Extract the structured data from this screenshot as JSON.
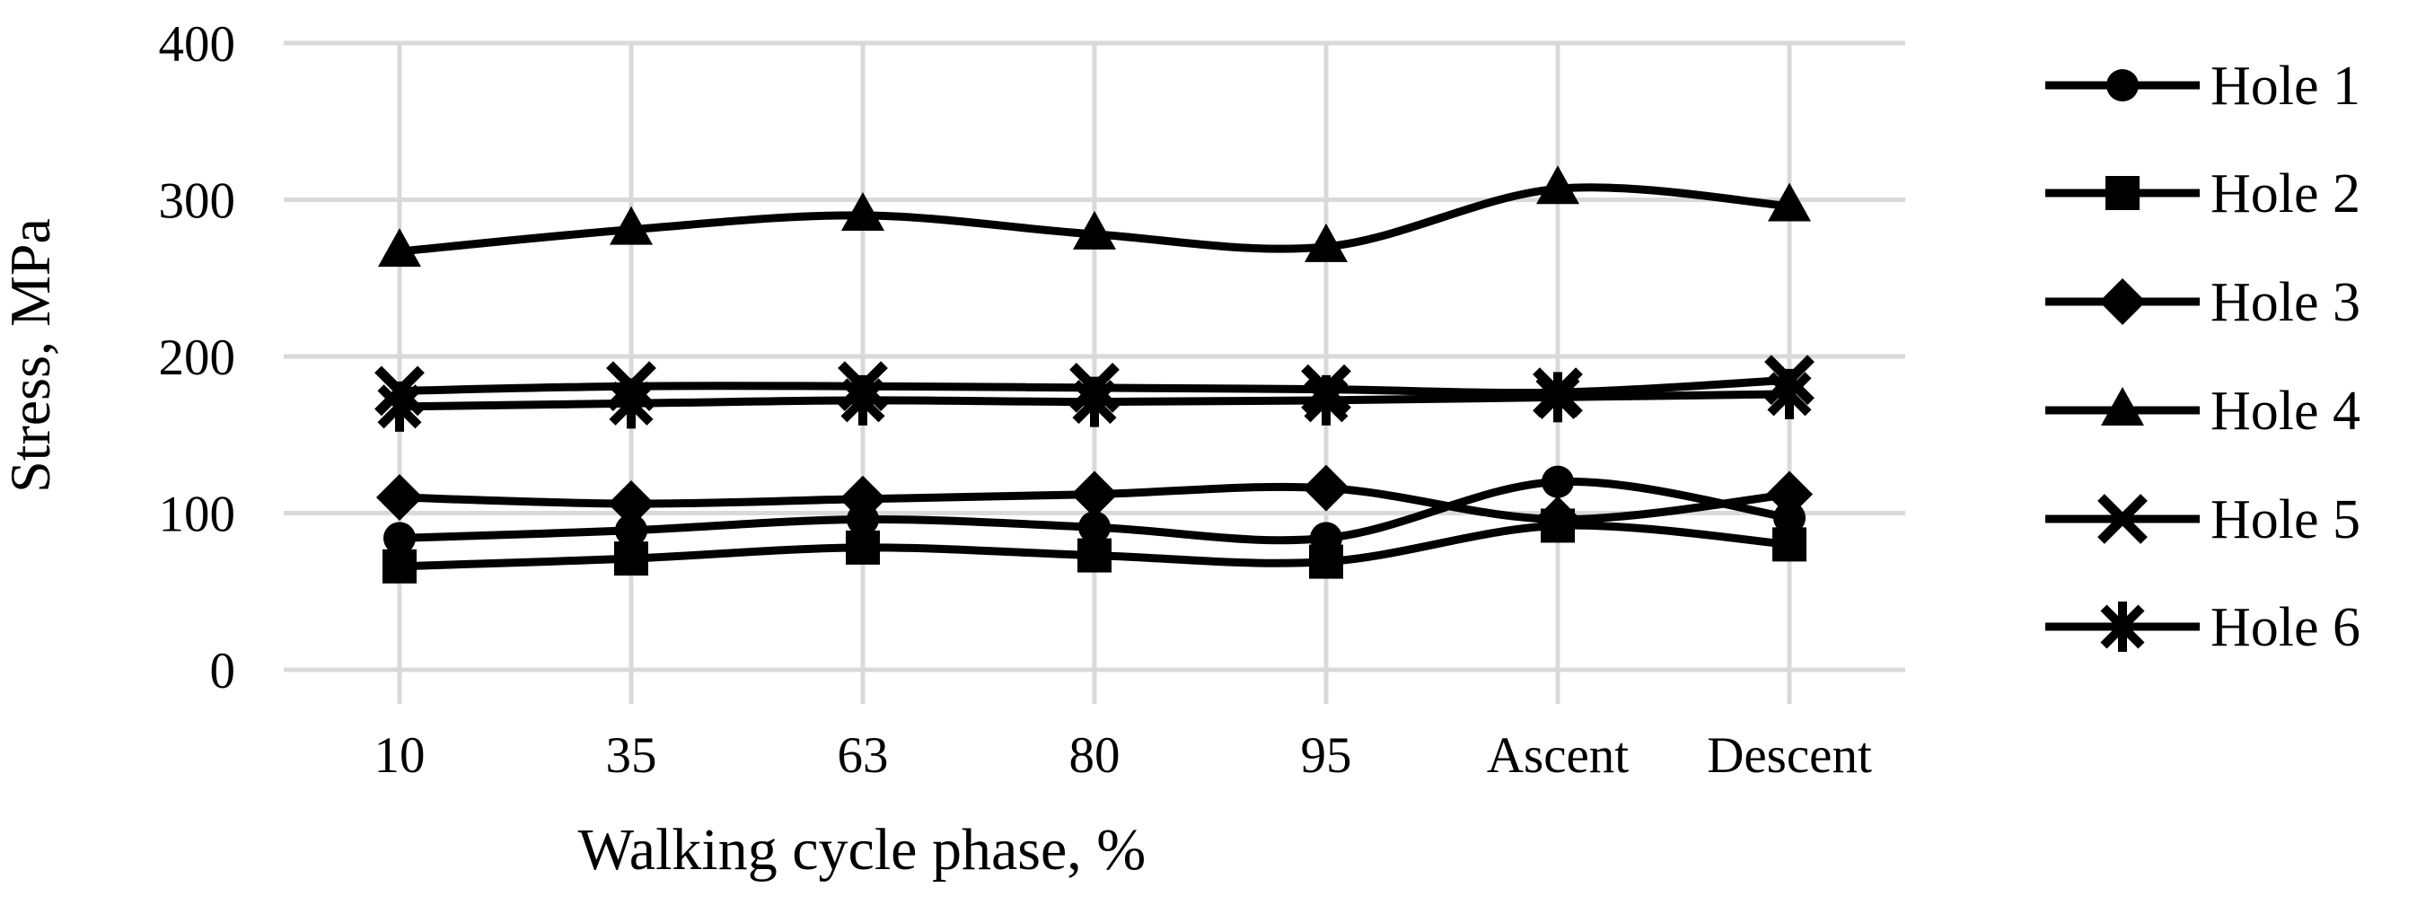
{
  "figure": {
    "background_color": "#ffffff",
    "line_color": "#000000",
    "grid_color": "#d9d9d9"
  },
  "chart_data": {
    "type": "line",
    "title": "",
    "xlabel": "Walking cycle phase, %",
    "ylabel": "Stress, MPa",
    "categories": [
      "10",
      "35",
      "63",
      "80",
      "95",
      "Ascent",
      "Descent"
    ],
    "ylim": [
      0,
      400
    ],
    "yticks": [
      0,
      100,
      200,
      300,
      400
    ],
    "grid": "on",
    "legend_position": "right",
    "series": [
      {
        "name": "Hole 1",
        "marker": "circle",
        "values": [
          84,
          89,
          96,
          91,
          84,
          120,
          97
        ]
      },
      {
        "name": "Hole 2",
        "marker": "square",
        "values": [
          66,
          71,
          78,
          73,
          69,
          92,
          80
        ]
      },
      {
        "name": "Hole 3",
        "marker": "diamond",
        "values": [
          110,
          106,
          109,
          112,
          116,
          96,
          112
        ]
      },
      {
        "name": "Hole 4",
        "marker": "triangle",
        "values": [
          267,
          281,
          290,
          278,
          270,
          307,
          296
        ]
      },
      {
        "name": "Hole 5",
        "marker": "x",
        "values": [
          178,
          181,
          181,
          180,
          179,
          177,
          185
        ]
      },
      {
        "name": "Hole 6",
        "marker": "asterisk",
        "values": [
          168,
          170,
          172,
          171,
          172,
          174,
          176
        ]
      }
    ]
  }
}
